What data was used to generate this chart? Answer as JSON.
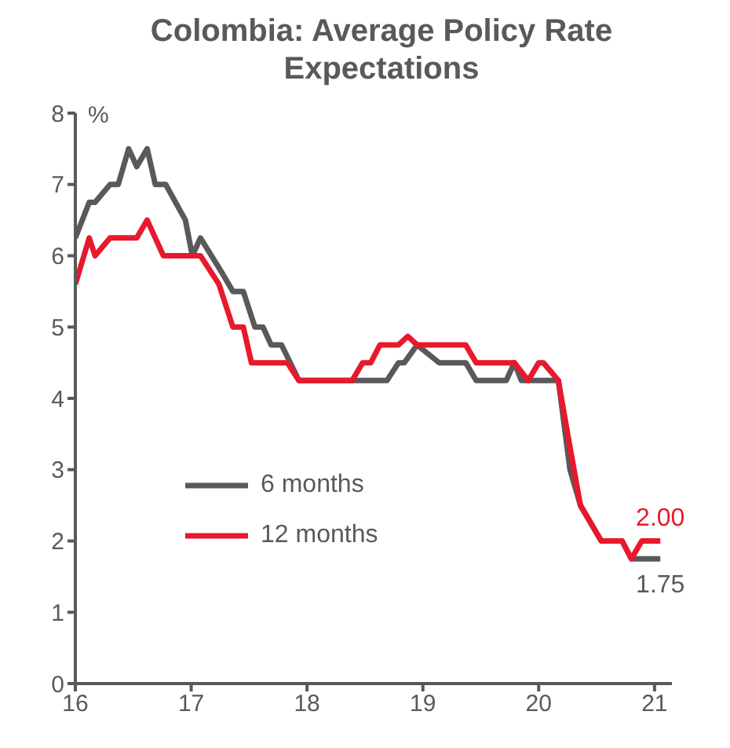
{
  "chart_data": {
    "type": "line",
    "title": "Colombia: Average Policy Rate Expectations",
    "ylabel": "%",
    "xlim": [
      16,
      21.15
    ],
    "xticks": [
      16,
      17,
      18,
      19,
      20,
      21
    ],
    "ylim": [
      0,
      8
    ],
    "yticks": [
      0,
      1,
      2,
      3,
      4,
      5,
      6,
      7,
      8
    ],
    "legend": "bottom",
    "marker": "none",
    "line_style": "solid",
    "series": [
      {
        "name": "6 months",
        "color": "#595959",
        "x": [
          16,
          16.12,
          16.17,
          16.3,
          16.37,
          16.46,
          16.53,
          16.62,
          16.69,
          16.78,
          16.95,
          17.01,
          17.08,
          17.27,
          17.36,
          17.45,
          17.55,
          17.62,
          17.69,
          17.78,
          17.93,
          18.69,
          18.79,
          18.84,
          18.95,
          19.14,
          19.37,
          19.46,
          19.72,
          19.79,
          19.85,
          20.17,
          20.27,
          20.36,
          20.45,
          20.54,
          20.72,
          20.8,
          21.05
        ],
        "values": [
          6.25,
          6.75,
          6.75,
          7,
          7,
          7.5,
          7.25,
          7.5,
          7,
          7,
          6.5,
          6,
          6.25,
          5.75,
          5.5,
          5.5,
          5,
          5,
          4.75,
          4.75,
          4.25,
          4.25,
          4.5,
          4.5,
          4.75,
          4.5,
          4.5,
          4.25,
          4.25,
          4.5,
          4.25,
          4.25,
          3,
          2.5,
          2.25,
          2,
          2,
          1.75,
          1.75
        ]
      },
      {
        "name": "12 months",
        "color": "#e8192c",
        "x": [
          16,
          16.12,
          16.17,
          16.3,
          16.53,
          16.62,
          16.76,
          17.08,
          17.24,
          17.36,
          17.45,
          17.52,
          17.83,
          17.93,
          18.39,
          18.48,
          18.55,
          18.63,
          18.79,
          18.87,
          18.95,
          19.37,
          19.46,
          19.79,
          19.91,
          20,
          20.04,
          20.17,
          20.25,
          20.36,
          20.45,
          20.54,
          20.72,
          20.8,
          20.89,
          21.05
        ],
        "values": [
          5.6,
          6.25,
          6,
          6.25,
          6.25,
          6.5,
          6,
          6,
          5.6,
          5,
          5,
          4.5,
          4.5,
          4.25,
          4.25,
          4.5,
          4.5,
          4.75,
          4.75,
          4.87,
          4.75,
          4.75,
          4.5,
          4.5,
          4.25,
          4.5,
          4.5,
          4.25,
          3.5,
          2.5,
          2.25,
          2,
          2,
          1.75,
          2,
          2
        ]
      }
    ],
    "annotations": [
      {
        "text": "1.75",
        "x": 21.05,
        "y": 1.75
      },
      {
        "text": "2.00",
        "x": 21.05,
        "y": 2
      }
    ]
  }
}
